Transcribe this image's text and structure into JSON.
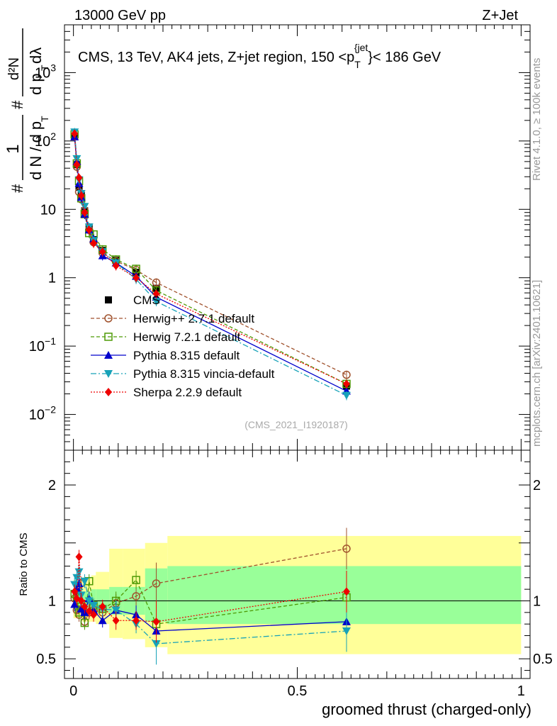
{
  "header": {
    "left": "13000 GeV pp",
    "right": "Z+Jet"
  },
  "side_labels": {
    "top": "Rivet 4.1.0, ≥ 100k events",
    "bottom": "mcplots.cern.ch [arXiv:2401.10621]"
  },
  "chart_data": [
    {
      "type": "line",
      "panel": "main",
      "title": "CMS, 13 TeV, AK4 jets, Z+jet region, 150 <p_T^{jet}< 186 GeV",
      "title_parts": {
        "main": "CMS, 13 TeV, AK4 jets, Z+jet region, 150 <p",
        "sub": "T",
        "sup": "{jet",
        "sup_close": "}",
        "tail": "< 186 GeV"
      },
      "ylabel": "1/(dN/dp_T) d²N/(dp_T dλ)",
      "ylabel_parts": {
        "top_num": "d²N",
        "top_den": "d p",
        "top_den_sub": "T",
        "top_den_tail": " dλ",
        "bot_num": "1",
        "bot_den": "d N / d p",
        "bot_den_sub": "T",
        "hash": "#"
      },
      "yscale": "log",
      "ylim": [
        0.003,
        5000
      ],
      "xlim": [
        -0.02,
        1.02
      ],
      "yticks": [
        {
          "v": 0.01,
          "base": "10",
          "exp": "−2"
        },
        {
          "v": 0.1,
          "base": "10",
          "exp": "−1"
        },
        {
          "v": 1,
          "base": "1",
          "exp": ""
        },
        {
          "v": 10,
          "base": "10",
          "exp": ""
        },
        {
          "v": 100,
          "base": "10",
          "exp": "2"
        },
        {
          "v": 1000,
          "base": "10",
          "exp": "3"
        }
      ],
      "watermark": "(CMS_2021_I1920187)",
      "legend_position": "middle-left",
      "series": [
        {
          "name": "CMS",
          "color": "#000000",
          "marker": "square",
          "style": "none",
          "x": [
            0.0025,
            0.0075,
            0.0125,
            0.0175,
            0.025,
            0.035,
            0.045,
            0.065,
            0.095,
            0.14,
            0.185,
            0.61
          ],
          "values": [
            118,
            45,
            21,
            16,
            9.5,
            5.5,
            3.6,
            2.5,
            1.8,
            1.2,
            0.7,
            0.026
          ]
        },
        {
          "name": "Herwig++ 2.7.1 default",
          "color": "#a0522d",
          "marker": "open-circle",
          "style": "dashed",
          "x": [
            0.0025,
            0.0075,
            0.0125,
            0.0175,
            0.025,
            0.035,
            0.045,
            0.065,
            0.095,
            0.14,
            0.185,
            0.61
          ],
          "values": [
            120,
            42,
            18,
            14,
            9.5,
            5.0,
            3.3,
            2.3,
            1.75,
            1.3,
            0.85,
            0.038
          ]
        },
        {
          "name": "Herwig 7.2.1 default",
          "color": "#4e9a06",
          "marker": "open-square",
          "style": "dashed",
          "x": [
            0.0025,
            0.0075,
            0.0125,
            0.0175,
            0.025,
            0.035,
            0.045,
            0.065,
            0.095,
            0.14,
            0.185,
            0.61
          ],
          "values": [
            125,
            47,
            26,
            14.5,
            8.5,
            4.5,
            4.3,
            2.6,
            1.85,
            1.35,
            0.65,
            0.028
          ]
        },
        {
          "name": "Pythia 8.315 default",
          "color": "#0000cc",
          "marker": "triangle-up",
          "style": "solid",
          "x": [
            0.0025,
            0.0075,
            0.0125,
            0.0175,
            0.025,
            0.035,
            0.045,
            0.065,
            0.095,
            0.14,
            0.185,
            0.61
          ],
          "values": [
            115,
            50,
            24,
            15,
            8.5,
            5.0,
            3.7,
            2.1,
            1.65,
            1.05,
            0.52,
            0.022
          ]
        },
        {
          "name": "Pythia 8.315 vincia-default",
          "color": "#17a2b8",
          "marker": "triangle-down",
          "style": "dashdot",
          "x": [
            0.0025,
            0.0075,
            0.0125,
            0.0175,
            0.025,
            0.035,
            0.045,
            0.065,
            0.095,
            0.14,
            0.185,
            0.61
          ],
          "values": [
            135,
            55,
            27,
            17,
            11.0,
            5.5,
            3.5,
            2.4,
            1.65,
            0.95,
            0.45,
            0.019
          ]
        },
        {
          "name": "Sherpa 2.2.9 default",
          "color": "#ee0000",
          "marker": "diamond",
          "style": "dotted",
          "x": [
            0.0025,
            0.0075,
            0.0125,
            0.0175,
            0.025,
            0.035,
            0.045,
            0.065,
            0.095,
            0.14,
            0.185,
            0.61
          ],
          "values": [
            128,
            45,
            29,
            16,
            9.0,
            5.0,
            3.2,
            2.4,
            1.5,
            1.0,
            0.58,
            0.028
          ]
        }
      ]
    },
    {
      "type": "line",
      "panel": "ratio",
      "ylabel": "Ratio to CMS",
      "xlabel": "groomed thrust (charged-only)",
      "ylim": [
        0.33,
        2.3
      ],
      "xlim": [
        -0.02,
        1.02
      ],
      "yticks": [
        0.5,
        1,
        2
      ],
      "ytick_labels": [
        "0.5",
        "1",
        "2"
      ],
      "xticks": [
        0,
        0.5,
        1
      ],
      "xtick_labels": [
        "0",
        "0.5",
        "1"
      ],
      "uncertainty_bands": {
        "bins": [
          [
            0,
            0.005
          ],
          [
            0.005,
            0.01
          ],
          [
            0.01,
            0.015
          ],
          [
            0.015,
            0.02
          ],
          [
            0.02,
            0.03
          ],
          [
            0.03,
            0.04
          ],
          [
            0.04,
            0.05
          ],
          [
            0.05,
            0.08
          ],
          [
            0.08,
            0.11
          ],
          [
            0.11,
            0.16
          ],
          [
            0.16,
            0.21
          ],
          [
            0.21,
            1.0
          ]
        ],
        "stat": [
          [
            0.93,
            1.07
          ],
          [
            0.9,
            1.1
          ],
          [
            0.9,
            1.1
          ],
          [
            0.92,
            1.08
          ],
          [
            0.92,
            1.08
          ],
          [
            0.92,
            1.08
          ],
          [
            0.9,
            1.1
          ],
          [
            0.9,
            1.1
          ],
          [
            0.88,
            1.12
          ],
          [
            0.88,
            1.12
          ],
          [
            0.82,
            1.28
          ],
          [
            0.8,
            1.3
          ]
        ],
        "total": [
          [
            0.85,
            1.18
          ],
          [
            0.85,
            1.18
          ],
          [
            0.85,
            1.18
          ],
          [
            0.85,
            1.18
          ],
          [
            0.82,
            1.2
          ],
          [
            0.82,
            1.2
          ],
          [
            0.82,
            1.22
          ],
          [
            0.8,
            1.25
          ],
          [
            0.68,
            1.45
          ],
          [
            0.67,
            1.45
          ],
          [
            0.6,
            1.5
          ],
          [
            0.54,
            1.56
          ]
        ],
        "stat_color": "#99ff99",
        "total_color": "#ffff99"
      },
      "series": [
        {
          "name": "Herwig++ 2.7.1 default",
          "color": "#a0522d",
          "marker": "open-circle",
          "style": "dashed",
          "x": [
            0.0025,
            0.0075,
            0.0125,
            0.0175,
            0.025,
            0.035,
            0.045,
            0.065,
            0.095,
            0.14,
            0.185,
            0.61
          ],
          "values": [
            1.02,
            0.92,
            0.88,
            1.15,
            0.82,
            0.9,
            0.92,
            0.9,
            0.98,
            1.04,
            1.15,
            1.45
          ]
        },
        {
          "name": "Herwig 7.2.1 default",
          "color": "#4e9a06",
          "marker": "open-square",
          "style": "dashed",
          "x": [
            0.0025,
            0.0075,
            0.0125,
            0.0175,
            0.025,
            0.035,
            0.045,
            0.065,
            0.095,
            0.14,
            0.185,
            0.61
          ],
          "values": [
            1.06,
            1.04,
            0.9,
            0.95,
            0.81,
            1.17,
            0.96,
            0.93,
            1.0,
            1.18,
            0.8,
            1.03
          ]
        },
        {
          "name": "Pythia 8.315 default",
          "color": "#0000cc",
          "marker": "triangle-up",
          "style": "solid",
          "x": [
            0.0025,
            0.0075,
            0.0125,
            0.0175,
            0.025,
            0.035,
            0.045,
            0.065,
            0.095,
            0.14,
            0.185,
            0.61
          ],
          "values": [
            0.97,
            1.1,
            1.15,
            0.93,
            0.9,
            1.02,
            0.92,
            0.83,
            0.92,
            0.88,
            0.74,
            0.82
          ]
        },
        {
          "name": "Pythia 8.315 vincia-default",
          "color": "#17a2b8",
          "marker": "triangle-down",
          "style": "dashdot",
          "x": [
            0.0025,
            0.0075,
            0.0125,
            0.0175,
            0.025,
            0.035,
            0.045,
            0.065,
            0.095,
            0.14,
            0.185,
            0.61
          ],
          "values": [
            1.14,
            1.2,
            1.25,
            1.05,
            1.17,
            1.0,
            0.96,
            0.93,
            0.92,
            0.8,
            0.63,
            0.74
          ]
        },
        {
          "name": "Sherpa 2.2.9 default",
          "color": "#ee0000",
          "marker": "diamond",
          "style": "dotted",
          "x": [
            0.0025,
            0.0075,
            0.0125,
            0.0175,
            0.025,
            0.035,
            0.045,
            0.065,
            0.095,
            0.14,
            0.185,
            0.61
          ],
          "values": [
            1.08,
            1.02,
            1.38,
            1.0,
            0.95,
            0.91,
            0.88,
            0.95,
            0.83,
            0.83,
            0.82,
            1.08
          ]
        }
      ]
    }
  ]
}
